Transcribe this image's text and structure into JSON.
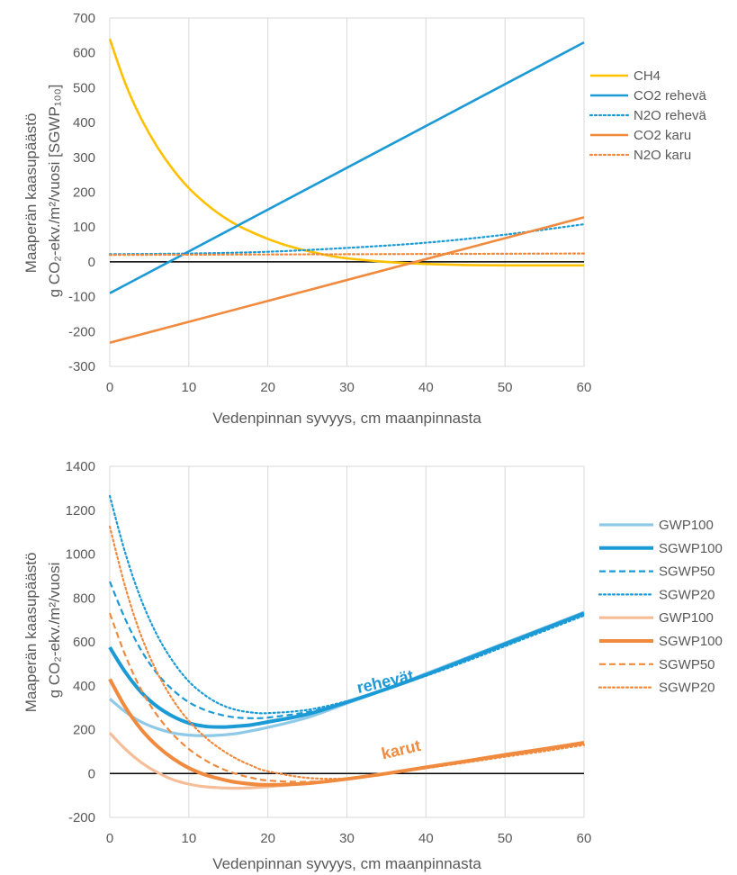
{
  "chart_data": [
    {
      "type": "line",
      "xlabel": "Vedenpinnan syvyys, cm maanpinnasta",
      "ylabel_lines": [
        "Maaperän kaasupäästö",
        "g CO₂-ekv./m²/vuosi [SGWP₁₀₀]"
      ],
      "xlim": [
        0,
        60
      ],
      "ylim": [
        -300,
        700
      ],
      "x_ticks": [
        0,
        10,
        20,
        30,
        40,
        50,
        60
      ],
      "y_ticks": [
        -300,
        -200,
        -100,
        0,
        100,
        200,
        300,
        400,
        500,
        600,
        700
      ],
      "grid": "vertical",
      "legend_position": "right",
      "series": [
        {
          "name": "CH4",
          "color": "#FFC000",
          "style": "solid",
          "x": [
            0,
            2,
            4,
            6,
            8,
            10,
            12,
            14,
            16,
            18,
            20,
            22,
            24,
            26,
            28,
            30,
            35,
            40,
            45,
            50,
            55,
            60
          ],
          "y": [
            640,
            510,
            410,
            330,
            265,
            212,
            170,
            135,
            107,
            85,
            66,
            50,
            37,
            26,
            17,
            10,
            0,
            -6,
            -9,
            -10,
            -10,
            -10
          ]
        },
        {
          "name": "CO2 rehevä",
          "color": "#1B9AD6",
          "style": "solid",
          "x": [
            0,
            60
          ],
          "y": [
            -90,
            630
          ]
        },
        {
          "name": "N2O rehevä",
          "color": "#1B9AD6",
          "style": "dotted",
          "x": [
            0,
            10,
            20,
            30,
            40,
            50,
            60
          ],
          "y": [
            22,
            24,
            29,
            40,
            55,
            78,
            108
          ]
        },
        {
          "name": "CO2 karu",
          "color": "#F08A3E",
          "style": "solid",
          "x": [
            0,
            60
          ],
          "y": [
            -232,
            128
          ]
        },
        {
          "name": "N2O karu",
          "color": "#F08A3E",
          "style": "dotted",
          "x": [
            0,
            60
          ],
          "y": [
            20,
            24
          ]
        }
      ]
    },
    {
      "type": "line",
      "xlabel": "Vedenpinnan syvyys, cm maanpinnasta",
      "ylabel_lines": [
        "Maaperän kaasupäästö",
        "g CO₂-ekv./m²/vuosi"
      ],
      "xlim": [
        0,
        60
      ],
      "ylim": [
        -200,
        1400
      ],
      "x_ticks": [
        0,
        10,
        20,
        30,
        40,
        50,
        60
      ],
      "y_ticks": [
        -200,
        0,
        200,
        400,
        600,
        800,
        1000,
        1200,
        1400
      ],
      "grid": "vertical",
      "legend_position": "right",
      "annotations": [
        {
          "text": "rehevät",
          "x": 35,
          "y": 395,
          "color": "#1B9AD6",
          "rotate": -13
        },
        {
          "text": "karut",
          "x": 37,
          "y": 85,
          "color": "#F08A3E",
          "rotate": -13
        }
      ],
      "series": [
        {
          "name": "GWP100",
          "color": "#8FC9E8",
          "style": "light",
          "x": [
            0,
            2,
            4,
            6,
            8,
            10,
            12,
            14,
            16,
            18,
            20,
            25,
            30,
            35,
            40,
            45,
            50,
            55,
            60
          ],
          "y": [
            340,
            280,
            235,
            205,
            185,
            175,
            172,
            175,
            182,
            195,
            210,
            255,
            320,
            385,
            455,
            525,
            595,
            665,
            735
          ]
        },
        {
          "name": "SGWP100",
          "color": "#1B9AD6",
          "style": "thick",
          "x": [
            0,
            2,
            4,
            6,
            8,
            10,
            12,
            14,
            16,
            18,
            20,
            25,
            30,
            35,
            40,
            45,
            50,
            55,
            60
          ],
          "y": [
            575,
            460,
            370,
            305,
            260,
            230,
            215,
            212,
            215,
            222,
            235,
            270,
            325,
            385,
            450,
            520,
            590,
            660,
            730
          ]
        },
        {
          "name": "SGWP50",
          "color": "#1B9AD6",
          "style": "dashed",
          "x": [
            0,
            2,
            4,
            6,
            8,
            10,
            12,
            14,
            16,
            18,
            20,
            25,
            30,
            35,
            40,
            45,
            50,
            55,
            60
          ],
          "y": [
            875,
            700,
            560,
            455,
            380,
            325,
            290,
            268,
            255,
            252,
            255,
            280,
            325,
            385,
            450,
            515,
            585,
            655,
            725
          ]
        },
        {
          "name": "SGWP20",
          "color": "#1B9AD6",
          "style": "dotted",
          "x": [
            0,
            2,
            4,
            6,
            8,
            10,
            12,
            14,
            16,
            18,
            20,
            25,
            30,
            35,
            40,
            45,
            50,
            55,
            60
          ],
          "y": [
            1265,
            1000,
            790,
            630,
            510,
            420,
            358,
            315,
            290,
            278,
            275,
            290,
            330,
            385,
            445,
            510,
            580,
            650,
            720
          ]
        },
        {
          "name": "GWP100",
          "color": "#F6BE98",
          "style": "light",
          "x": [
            0,
            2,
            4,
            6,
            8,
            10,
            12,
            14,
            16,
            18,
            20,
            25,
            30,
            35,
            40,
            45,
            50,
            55,
            60
          ],
          "y": [
            185,
            110,
            50,
            5,
            -28,
            -48,
            -60,
            -65,
            -67,
            -65,
            -60,
            -45,
            -25,
            0,
            28,
            56,
            85,
            113,
            142
          ]
        },
        {
          "name": "SGWP100",
          "color": "#F08A3E",
          "style": "thick",
          "x": [
            0,
            2,
            4,
            6,
            8,
            10,
            12,
            14,
            16,
            18,
            20,
            25,
            30,
            35,
            40,
            45,
            50,
            55,
            60
          ],
          "y": [
            430,
            300,
            200,
            125,
            68,
            25,
            -5,
            -25,
            -40,
            -48,
            -52,
            -45,
            -25,
            0,
            28,
            56,
            85,
            112,
            140
          ]
        },
        {
          "name": "SGWP50",
          "color": "#F08A3E",
          "style": "dashed",
          "x": [
            0,
            2,
            4,
            6,
            8,
            10,
            12,
            14,
            16,
            18,
            20,
            25,
            30,
            35,
            40,
            45,
            50,
            55,
            60
          ],
          "y": [
            730,
            535,
            380,
            265,
            178,
            112,
            62,
            25,
            -2,
            -20,
            -32,
            -38,
            -25,
            0,
            26,
            52,
            80,
            108,
            135
          ]
        },
        {
          "name": "SGWP20",
          "color": "#F08A3E",
          "style": "dotted",
          "x": [
            0,
            2,
            4,
            6,
            8,
            10,
            12,
            14,
            16,
            18,
            20,
            25,
            30,
            35,
            40,
            45,
            50,
            55,
            60
          ],
          "y": [
            1125,
            845,
            625,
            460,
            335,
            240,
            168,
            112,
            68,
            35,
            10,
            -20,
            -22,
            0,
            24,
            50,
            76,
            102,
            130
          ]
        }
      ]
    }
  ]
}
